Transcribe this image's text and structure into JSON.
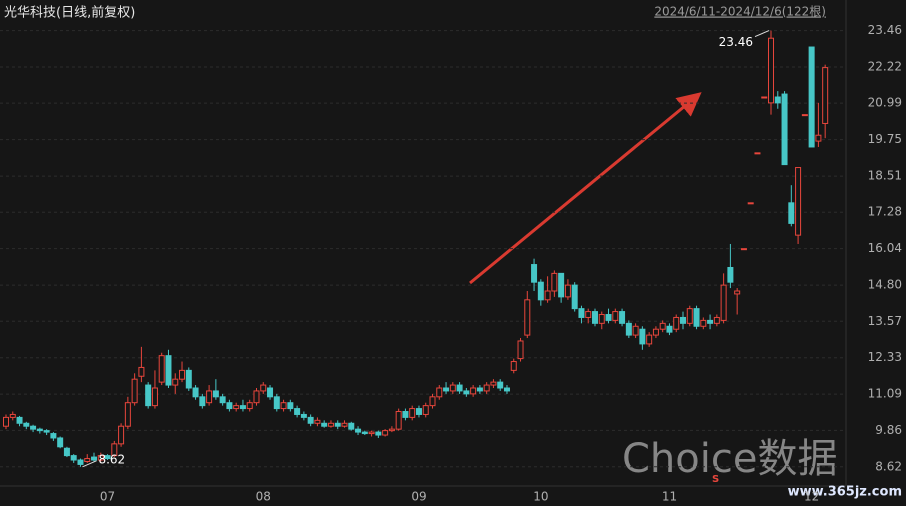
{
  "chart_data": {
    "type": "candlestick",
    "title": "光华科技(日线,前复权)",
    "subtitle": "2024/6/11-2024/12/6(122根)",
    "watermark": "Choice数据",
    "source": "www.365jz.com",
    "marker_label": "S",
    "max_label": 23.46,
    "min_label": 8.62,
    "up_color": "#e8463c",
    "down_color": "#47c7c7",
    "ylim": [
      8.0,
      24.5
    ],
    "yticks": [
      23.46,
      22.22,
      20.99,
      19.75,
      18.51,
      17.28,
      16.04,
      {
        "value": 14.8,
        "label": "14.80"
      },
      13.57,
      12.33,
      11.09,
      9.86,
      8.62
    ],
    "grid": true,
    "categories": [
      null,
      null,
      null,
      null,
      null,
      null,
      null,
      null,
      null,
      null,
      null,
      null,
      null,
      null,
      null,
      "07",
      null,
      null,
      null,
      null,
      null,
      null,
      null,
      null,
      null,
      null,
      null,
      null,
      null,
      null,
      null,
      null,
      null,
      null,
      null,
      null,
      null,
      null,
      "08",
      null,
      null,
      null,
      null,
      null,
      null,
      null,
      null,
      null,
      null,
      null,
      null,
      null,
      null,
      null,
      null,
      null,
      null,
      null,
      null,
      null,
      null,
      "09",
      null,
      null,
      null,
      null,
      null,
      null,
      null,
      null,
      null,
      null,
      null,
      null,
      null,
      null,
      null,
      null,
      null,
      "10",
      null,
      null,
      null,
      null,
      null,
      null,
      null,
      null,
      null,
      null,
      null,
      null,
      null,
      null,
      null,
      null,
      null,
      null,
      "11",
      null,
      null,
      null,
      null,
      null,
      null,
      null,
      null,
      null,
      null,
      null,
      null,
      null,
      null,
      null,
      null,
      null,
      null,
      null,
      null,
      "12",
      null,
      null
    ],
    "open": [
      10.0,
      10.3,
      10.3,
      10.1,
      10.0,
      9.9,
      9.85,
      9.75,
      9.6,
      9.25,
      9.0,
      8.85,
      8.8,
      8.95,
      8.85,
      9.0,
      9.0,
      9.4,
      10.0,
      10.8,
      11.7,
      11.4,
      10.7,
      11.5,
      12.4,
      11.4,
      11.6,
      11.9,
      11.3,
      11.0,
      10.8,
      11.2,
      11.0,
      10.8,
      10.6,
      10.7,
      10.6,
      10.8,
      11.2,
      11.3,
      11.0,
      10.6,
      10.8,
      10.6,
      10.4,
      10.3,
      10.1,
      10.1,
      10.0,
      10.1,
      10.0,
      10.1,
      9.9,
      9.8,
      9.75,
      9.8,
      9.7,
      9.85,
      9.9,
      10.5,
      10.3,
      10.6,
      10.4,
      10.7,
      11.0,
      11.3,
      11.2,
      11.4,
      11.2,
      11.1,
      11.3,
      11.2,
      11.4,
      11.5,
      11.3,
      11.9,
      12.3,
      13.1,
      15.5,
      14.9,
      14.3,
      14.6,
      15.2,
      14.4,
      14.8,
      14.0,
      13.7,
      13.9,
      13.5,
      13.8,
      13.6,
      13.9,
      13.5,
      13.1,
      13.3,
      12.8,
      13.1,
      13.3,
      13.4,
      13.3,
      13.7,
      13.5,
      14.0,
      13.4,
      13.6,
      13.5,
      13.6,
      15.4,
      14.5,
      16.04,
      17.6,
      19.3,
      21.2,
      21.0,
      21.2,
      21.3,
      17.6,
      16.5,
      20.6,
      22.9,
      19.7,
      20.3
    ],
    "high": [
      10.4,
      10.5,
      10.35,
      10.15,
      10.05,
      9.95,
      9.9,
      9.8,
      9.65,
      9.3,
      9.05,
      8.9,
      9.05,
      9.1,
      9.1,
      9.05,
      9.5,
      10.1,
      11.0,
      11.8,
      12.7,
      11.5,
      11.9,
      12.5,
      12.6,
      11.8,
      12.2,
      12.0,
      11.4,
      11.1,
      11.4,
      11.6,
      11.1,
      10.9,
      10.8,
      10.9,
      10.9,
      11.3,
      11.5,
      11.4,
      11.1,
      10.9,
      10.9,
      10.7,
      10.5,
      10.4,
      10.3,
      10.2,
      10.2,
      10.2,
      10.2,
      10.15,
      10.0,
      9.85,
      9.85,
      9.85,
      9.9,
      10.0,
      10.6,
      10.6,
      10.7,
      10.7,
      10.8,
      11.1,
      11.4,
      11.5,
      11.5,
      11.5,
      11.3,
      11.4,
      11.4,
      11.5,
      11.6,
      11.6,
      11.4,
      12.3,
      13.0,
      14.6,
      15.7,
      15.0,
      15.1,
      15.3,
      15.2,
      15.0,
      14.9,
      14.1,
      14.0,
      14.0,
      13.9,
      14.0,
      14.0,
      14.0,
      13.6,
      13.5,
      13.4,
      13.2,
      13.4,
      13.6,
      13.5,
      13.8,
      13.9,
      14.1,
      14.1,
      13.7,
      13.8,
      13.8,
      15.2,
      16.2,
      14.7,
      16.04,
      17.6,
      19.3,
      21.2,
      23.46,
      21.4,
      21.4,
      18.2,
      18.8,
      20.6,
      22.9,
      21.0,
      22.3
    ],
    "low": [
      9.9,
      10.2,
      10.0,
      9.9,
      9.8,
      9.75,
      9.7,
      9.5,
      9.25,
      8.95,
      8.75,
      8.62,
      8.75,
      8.8,
      8.8,
      8.85,
      8.95,
      9.3,
      9.9,
      10.7,
      11.5,
      10.6,
      10.6,
      11.4,
      11.3,
      11.1,
      11.5,
      11.2,
      10.9,
      10.6,
      10.7,
      10.9,
      10.7,
      10.5,
      10.5,
      10.5,
      10.5,
      10.7,
      11.1,
      10.9,
      10.5,
      10.5,
      10.5,
      10.3,
      10.2,
      10.0,
      10.0,
      9.95,
      9.95,
      9.9,
      9.95,
      9.85,
      9.7,
      9.7,
      9.65,
      9.6,
      9.65,
      9.8,
      9.85,
      10.2,
      10.2,
      10.3,
      10.3,
      10.6,
      10.9,
      11.1,
      11.1,
      11.1,
      11.0,
      11.0,
      11.1,
      11.1,
      11.3,
      11.2,
      11.1,
      11.8,
      12.2,
      13.0,
      14.6,
      14.1,
      14.2,
      14.4,
      14.2,
      14.3,
      13.9,
      13.5,
      13.5,
      13.4,
      13.3,
      13.5,
      13.5,
      13.4,
      13.0,
      13.0,
      12.6,
      12.7,
      13.0,
      13.2,
      13.1,
      13.2,
      13.3,
      13.4,
      13.3,
      13.3,
      13.3,
      13.4,
      13.5,
      14.7,
      13.8,
      16.04,
      17.6,
      19.3,
      21.2,
      20.6,
      20.8,
      18.9,
      16.8,
      16.2,
      20.6,
      19.5,
      19.5,
      19.8
    ],
    "close": [
      10.3,
      10.4,
      10.1,
      10.0,
      9.9,
      9.85,
      9.8,
      9.6,
      9.3,
      9.0,
      8.85,
      8.7,
      8.9,
      8.85,
      9.0,
      8.9,
      9.4,
      10.0,
      10.8,
      11.6,
      12.0,
      10.7,
      11.3,
      12.4,
      11.4,
      11.6,
      11.9,
      11.3,
      11.0,
      10.7,
      11.2,
      11.0,
      10.8,
      10.6,
      10.7,
      10.6,
      10.8,
      11.2,
      11.4,
      11.0,
      10.6,
      10.8,
      10.6,
      10.4,
      10.3,
      10.1,
      10.2,
      10.0,
      10.1,
      10.0,
      10.1,
      9.9,
      9.8,
      9.75,
      9.8,
      9.7,
      9.85,
      9.9,
      10.5,
      10.3,
      10.6,
      10.4,
      10.7,
      11.0,
      11.3,
      11.2,
      11.4,
      11.2,
      11.1,
      11.3,
      11.2,
      11.4,
      11.5,
      11.3,
      11.2,
      12.2,
      12.9,
      14.3,
      14.9,
      14.3,
      14.6,
      15.2,
      14.4,
      14.8,
      14.0,
      13.7,
      13.9,
      13.5,
      13.8,
      13.6,
      13.9,
      13.5,
      13.1,
      13.4,
      12.8,
      13.1,
      13.3,
      13.5,
      13.2,
      13.7,
      13.5,
      14.0,
      13.4,
      13.6,
      13.5,
      13.7,
      14.8,
      14.9,
      14.6,
      16.04,
      17.6,
      19.3,
      21.2,
      23.2,
      21.0,
      18.9,
      16.9,
      18.8,
      20.6,
      19.5,
      19.9,
      22.2
    ]
  }
}
